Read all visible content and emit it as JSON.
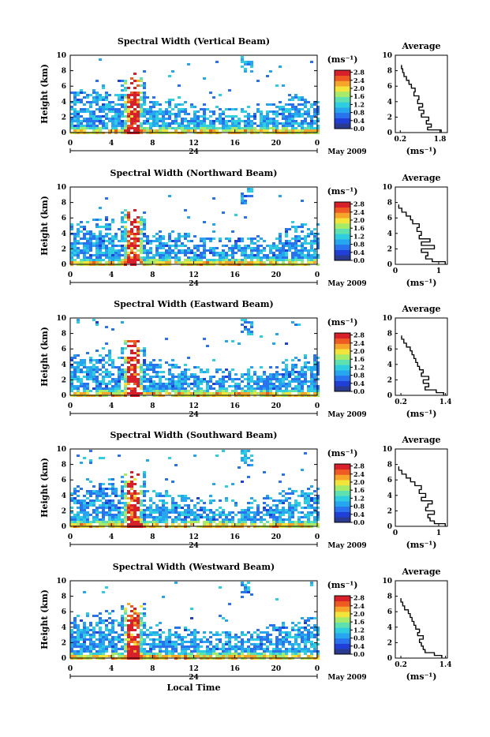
{
  "figure": {
    "date_label": "May 2009",
    "time_label": "Local Time",
    "day_label": "24",
    "height_label": "Height (km)",
    "average_title": "Average",
    "colorbar_unit": "(ms⁻¹)",
    "palette": [
      "#2a3a8f",
      "#1f3fd6",
      "#2a73ee",
      "#27a6f0",
      "#2ecde0",
      "#5fe0b0",
      "#a6ea6a",
      "#f2e43a",
      "#f7a52a",
      "#ee5a22",
      "#d8202a"
    ]
  },
  "chart_data": [
    {
      "type": "heatmap",
      "title": "Spectral Width (Vertical Beam)",
      "x": [
        0,
        4,
        8,
        12,
        16,
        20,
        0
      ],
      "y": [
        0,
        2,
        4,
        6,
        8,
        10
      ],
      "xlim": [
        0,
        24
      ],
      "ylim": [
        0,
        10
      ],
      "xlabel": "",
      "ylabel": "Height (km)",
      "colorbar": {
        "ticks": [
          0.0,
          0.4,
          0.8,
          1.2,
          1.6,
          2.0,
          2.4,
          2.8
        ],
        "unit": "(ms⁻¹)"
      },
      "profile": {
        "title": "Average",
        "xticks": [
          0.2,
          1.8
        ],
        "xlim": [
          0.0,
          2.1
        ],
        "yticks": [
          0,
          2,
          4,
          6,
          8,
          10
        ],
        "ylim": [
          0,
          10
        ],
        "xlabel": "(ms⁻¹)",
        "h": [
          0.2,
          0.5,
          0.9,
          1.3,
          1.8,
          2.2,
          2.7,
          3.1,
          3.5,
          4.0,
          4.5,
          5.0,
          5.5,
          6.0,
          6.5,
          7.0,
          7.5,
          8.0,
          8.5
        ],
        "v": [
          1.85,
          1.3,
          1.45,
          1.25,
          1.35,
          1.05,
          1.15,
          0.95,
          1.1,
          0.9,
          0.95,
          0.75,
          0.8,
          0.65,
          0.55,
          0.45,
          0.35,
          0.3,
          0.25
        ]
      }
    },
    {
      "type": "heatmap",
      "title": "Spectral Width (Northward Beam)",
      "x": [
        0,
        4,
        8,
        12,
        16,
        20,
        0
      ],
      "y": [
        0,
        2,
        4,
        6,
        8,
        10
      ],
      "xlim": [
        0,
        24
      ],
      "ylim": [
        0,
        10
      ],
      "xlabel": "",
      "ylabel": "Height (km)",
      "colorbar": {
        "ticks": [
          0.0,
          0.4,
          0.8,
          1.2,
          1.6,
          2.0,
          2.4,
          2.8
        ],
        "unit": "(ms⁻¹)"
      },
      "profile": {
        "title": "Average",
        "xticks": [
          0,
          1
        ],
        "xlim": [
          0,
          1.2
        ],
        "yticks": [
          0,
          2,
          4,
          6,
          8,
          10
        ],
        "ylim": [
          0,
          10
        ],
        "xlabel": "(ms⁻¹)",
        "h": [
          0.2,
          0.5,
          0.9,
          1.3,
          1.8,
          2.2,
          2.7,
          3.1,
          3.5,
          4.0,
          4.5,
          5.0,
          5.5,
          6.0,
          6.5,
          7.0,
          7.5
        ],
        "v": [
          1.15,
          0.85,
          0.7,
          0.75,
          0.6,
          0.9,
          0.6,
          0.8,
          0.55,
          0.6,
          0.5,
          0.55,
          0.4,
          0.35,
          0.25,
          0.15,
          0.08
        ]
      }
    },
    {
      "type": "heatmap",
      "title": "Spectral Width (Eastward Beam)",
      "x": [
        0,
        4,
        8,
        12,
        16,
        20,
        0
      ],
      "y": [
        0,
        2,
        4,
        6,
        8,
        10
      ],
      "xlim": [
        0,
        24
      ],
      "ylim": [
        0,
        10
      ],
      "xlabel": "",
      "ylabel": "Height (km)",
      "colorbar": {
        "ticks": [
          0.0,
          0.4,
          0.8,
          1.2,
          1.6,
          2.0,
          2.4,
          2.8
        ],
        "unit": "(ms⁻¹)"
      },
      "profile": {
        "title": "Average",
        "xticks": [
          0.2,
          1.4
        ],
        "xlim": [
          0.05,
          1.45
        ],
        "yticks": [
          0,
          2,
          4,
          6,
          8,
          10
        ],
        "ylim": [
          0,
          10
        ],
        "xlabel": "(ms⁻¹)",
        "h": [
          0.2,
          0.5,
          0.9,
          1.3,
          1.8,
          2.2,
          2.7,
          3.1,
          3.5,
          4.0,
          4.5,
          5.0,
          5.5,
          6.0,
          6.5,
          7.0,
          7.5
        ],
        "v": [
          1.35,
          1.15,
          0.85,
          0.95,
          0.8,
          0.95,
          0.75,
          0.8,
          0.7,
          0.65,
          0.6,
          0.55,
          0.5,
          0.45,
          0.35,
          0.28,
          0.22
        ]
      }
    },
    {
      "type": "heatmap",
      "title": "Spectral Width (Southward Beam)",
      "x": [
        0,
        4,
        8,
        12,
        16,
        20,
        0
      ],
      "y": [
        0,
        2,
        4,
        6,
        8,
        10
      ],
      "xlim": [
        0,
        24
      ],
      "ylim": [
        0,
        10
      ],
      "xlabel": "",
      "ylabel": "Height (km)",
      "colorbar": {
        "ticks": [
          0.0,
          0.4,
          0.8,
          1.2,
          1.6,
          2.0,
          2.4,
          2.8
        ],
        "unit": "(ms⁻¹)"
      },
      "profile": {
        "title": "Average",
        "xticks": [
          0,
          1
        ],
        "xlim": [
          0,
          1.2
        ],
        "yticks": [
          0,
          2,
          4,
          6,
          8,
          10
        ],
        "ylim": [
          0,
          10
        ],
        "xlabel": "(ms⁻¹)",
        "h": [
          0.2,
          0.5,
          0.9,
          1.3,
          1.8,
          2.2,
          2.7,
          3.1,
          3.5,
          4.0,
          4.5,
          5.0,
          5.5,
          6.0,
          6.5,
          7.0,
          7.5
        ],
        "v": [
          1.15,
          0.9,
          0.8,
          0.75,
          0.9,
          0.7,
          0.75,
          0.85,
          0.6,
          0.7,
          0.55,
          0.6,
          0.45,
          0.35,
          0.25,
          0.15,
          0.08
        ]
      }
    },
    {
      "type": "heatmap",
      "title": "Spectral Width (Westward Beam)",
      "x": [
        0,
        4,
        8,
        12,
        16,
        20,
        0
      ],
      "y": [
        0,
        2,
        4,
        6,
        8,
        10
      ],
      "xlim": [
        0,
        24
      ],
      "ylim": [
        0,
        10
      ],
      "xlabel": "Local Time",
      "ylabel": "Height (km)",
      "colorbar": {
        "ticks": [
          0.0,
          0.4,
          0.8,
          1.2,
          1.6,
          2.0,
          2.4,
          2.8
        ],
        "unit": "(ms⁻¹)"
      },
      "profile": {
        "title": "Average",
        "xticks": [
          0.2,
          1.4
        ],
        "xlim": [
          0.05,
          1.45
        ],
        "yticks": [
          0,
          2,
          4,
          6,
          8,
          10
        ],
        "ylim": [
          0,
          10
        ],
        "xlabel": "(ms⁻¹)",
        "h": [
          0.2,
          0.5,
          0.9,
          1.3,
          1.8,
          2.2,
          2.7,
          3.1,
          3.5,
          4.0,
          4.5,
          5.0,
          5.5,
          6.0,
          6.5,
          7.0,
          7.5
        ],
        "v": [
          1.3,
          1.1,
          0.85,
          0.8,
          0.75,
          0.7,
          0.8,
          0.65,
          0.7,
          0.6,
          0.55,
          0.5,
          0.45,
          0.4,
          0.3,
          0.25,
          0.2
        ]
      }
    }
  ]
}
